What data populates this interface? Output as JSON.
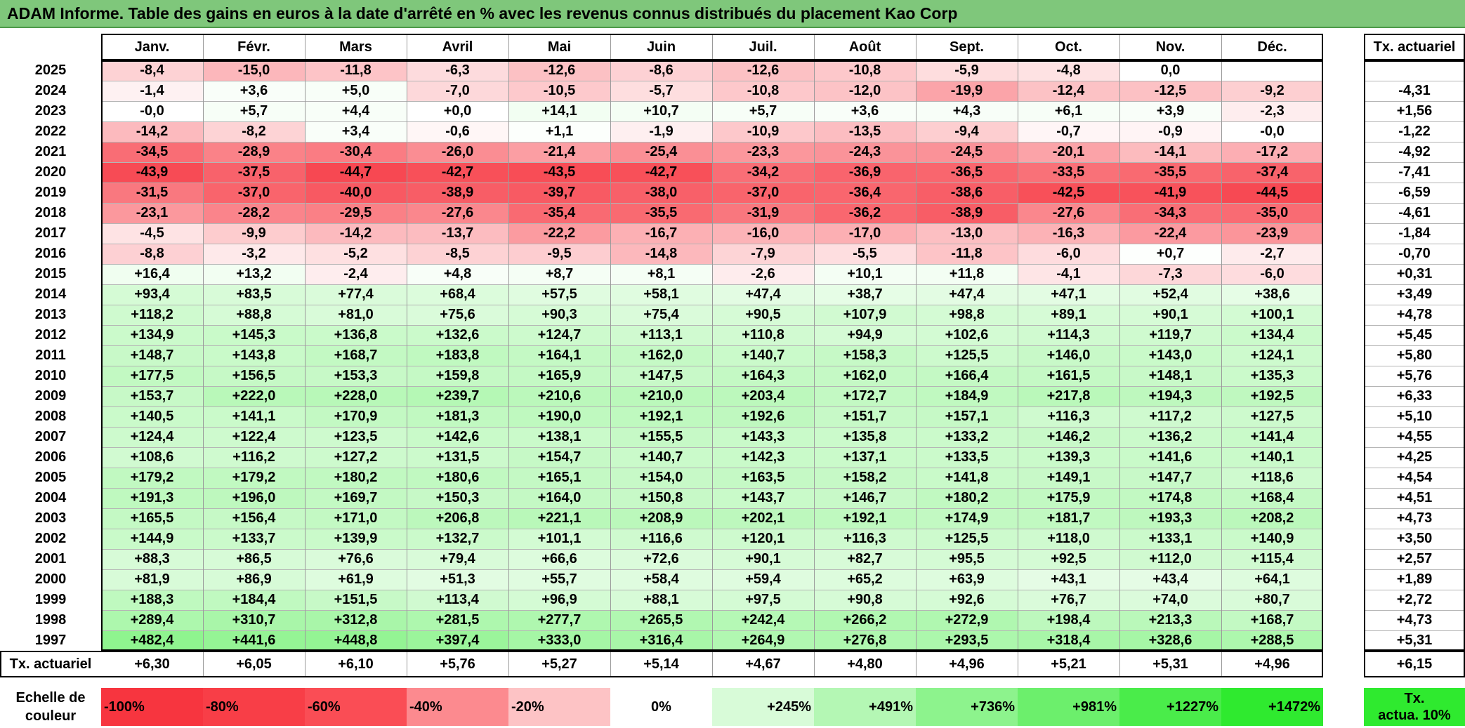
{
  "title": "ADAM Informe. Table des gains en euros à la date d'arrêté en % avec les revenus connus distribués du placement Kao Corp",
  "chart_data": {
    "type": "heatmap",
    "title": "ADAM Informe. Table des gains en euros à la date d'arrêté en % avec les revenus connus distribués du placement Kao Corp",
    "months": [
      "Janv.",
      "Févr.",
      "Mars",
      "Avril",
      "Mai",
      "Juin",
      "Juil.",
      "Août",
      "Sept.",
      "Oct.",
      "Nov.",
      "Déc."
    ],
    "annual_header": "Tx. actuariel",
    "rows": [
      {
        "year": "2025",
        "values": [
          "-8,4",
          "-15,0",
          "-11,8",
          "-6,3",
          "-12,6",
          "-8,6",
          "-12,6",
          "-10,8",
          "-5,9",
          "-4,8",
          "0,0",
          ""
        ],
        "annual": ""
      },
      {
        "year": "2024",
        "values": [
          "-1,4",
          "+3,6",
          "+5,0",
          "-7,0",
          "-10,5",
          "-5,7",
          "-10,8",
          "-12,0",
          "-19,9",
          "-12,4",
          "-12,5",
          "-9,2"
        ],
        "annual": "-4,31"
      },
      {
        "year": "2023",
        "values": [
          "-0,0",
          "+5,7",
          "+4,4",
          "+0,0",
          "+14,1",
          "+10,7",
          "+5,7",
          "+3,6",
          "+4,3",
          "+6,1",
          "+3,9",
          "-2,3"
        ],
        "annual": "+1,56"
      },
      {
        "year": "2022",
        "values": [
          "-14,2",
          "-8,2",
          "+3,4",
          "-0,6",
          "+1,1",
          "-1,9",
          "-10,9",
          "-13,5",
          "-9,4",
          "-0,7",
          "-0,9",
          "-0,0"
        ],
        "annual": "-1,22"
      },
      {
        "year": "2021",
        "values": [
          "-34,5",
          "-28,9",
          "-30,4",
          "-26,0",
          "-21,4",
          "-25,4",
          "-23,3",
          "-24,3",
          "-24,5",
          "-20,1",
          "-14,1",
          "-17,2"
        ],
        "annual": "-4,92"
      },
      {
        "year": "2020",
        "values": [
          "-43,9",
          "-37,5",
          "-44,7",
          "-42,7",
          "-43,5",
          "-42,7",
          "-34,2",
          "-36,9",
          "-36,5",
          "-33,5",
          "-35,5",
          "-37,4"
        ],
        "annual": "-7,41"
      },
      {
        "year": "2019",
        "values": [
          "-31,5",
          "-37,0",
          "-40,0",
          "-38,9",
          "-39,7",
          "-38,0",
          "-37,0",
          "-36,4",
          "-38,6",
          "-42,5",
          "-41,9",
          "-44,5"
        ],
        "annual": "-6,59"
      },
      {
        "year": "2018",
        "values": [
          "-23,1",
          "-28,2",
          "-29,5",
          "-27,6",
          "-35,4",
          "-35,5",
          "-31,9",
          "-36,2",
          "-38,9",
          "-27,6",
          "-34,3",
          "-35,0"
        ],
        "annual": "-4,61"
      },
      {
        "year": "2017",
        "values": [
          "-4,5",
          "-9,9",
          "-14,2",
          "-13,7",
          "-22,2",
          "-16,7",
          "-16,0",
          "-17,0",
          "-13,0",
          "-16,3",
          "-22,4",
          "-23,9"
        ],
        "annual": "-1,84"
      },
      {
        "year": "2016",
        "values": [
          "-8,8",
          "-3,2",
          "-5,2",
          "-8,5",
          "-9,5",
          "-14,8",
          "-7,9",
          "-5,5",
          "-11,8",
          "-6,0",
          "+0,7",
          "-2,7"
        ],
        "annual": "-0,70"
      },
      {
        "year": "2015",
        "values": [
          "+16,4",
          "+13,2",
          "-2,4",
          "+4,8",
          "+8,7",
          "+8,1",
          "-2,6",
          "+10,1",
          "+11,8",
          "-4,1",
          "-7,3",
          "-6,0"
        ],
        "annual": "+0,31"
      },
      {
        "year": "2014",
        "values": [
          "+93,4",
          "+83,5",
          "+77,4",
          "+68,4",
          "+57,5",
          "+58,1",
          "+47,4",
          "+38,7",
          "+47,4",
          "+47,1",
          "+52,4",
          "+38,6"
        ],
        "annual": "+3,49"
      },
      {
        "year": "2013",
        "values": [
          "+118,2",
          "+88,8",
          "+81,0",
          "+75,6",
          "+90,3",
          "+75,4",
          "+90,5",
          "+107,9",
          "+98,8",
          "+89,1",
          "+90,1",
          "+100,1"
        ],
        "annual": "+4,78"
      },
      {
        "year": "2012",
        "values": [
          "+134,9",
          "+145,3",
          "+136,8",
          "+132,6",
          "+124,7",
          "+113,1",
          "+110,8",
          "+94,9",
          "+102,6",
          "+114,3",
          "+119,7",
          "+134,4"
        ],
        "annual": "+5,45"
      },
      {
        "year": "2011",
        "values": [
          "+148,7",
          "+143,8",
          "+168,7",
          "+183,8",
          "+164,1",
          "+162,0",
          "+140,7",
          "+158,3",
          "+125,5",
          "+146,0",
          "+143,0",
          "+124,1"
        ],
        "annual": "+5,80"
      },
      {
        "year": "2010",
        "values": [
          "+177,5",
          "+156,5",
          "+153,3",
          "+159,8",
          "+165,9",
          "+147,5",
          "+164,3",
          "+162,0",
          "+166,4",
          "+161,5",
          "+148,1",
          "+135,3"
        ],
        "annual": "+5,76"
      },
      {
        "year": "2009",
        "values": [
          "+153,7",
          "+222,0",
          "+228,0",
          "+239,7",
          "+210,6",
          "+210,0",
          "+203,4",
          "+172,7",
          "+184,9",
          "+217,8",
          "+194,3",
          "+192,5"
        ],
        "annual": "+6,33"
      },
      {
        "year": "2008",
        "values": [
          "+140,5",
          "+141,1",
          "+170,9",
          "+181,3",
          "+190,0",
          "+192,1",
          "+192,6",
          "+151,7",
          "+157,1",
          "+116,3",
          "+117,2",
          "+127,5"
        ],
        "annual": "+5,10"
      },
      {
        "year": "2007",
        "values": [
          "+124,4",
          "+122,4",
          "+123,5",
          "+142,6",
          "+138,1",
          "+155,5",
          "+143,3",
          "+135,8",
          "+133,2",
          "+146,2",
          "+136,2",
          "+141,4"
        ],
        "annual": "+4,55"
      },
      {
        "year": "2006",
        "values": [
          "+108,6",
          "+116,2",
          "+127,2",
          "+131,5",
          "+154,7",
          "+140,7",
          "+142,3",
          "+137,1",
          "+133,5",
          "+139,3",
          "+141,6",
          "+140,1"
        ],
        "annual": "+4,25"
      },
      {
        "year": "2005",
        "values": [
          "+179,2",
          "+179,2",
          "+180,2",
          "+180,6",
          "+165,1",
          "+154,0",
          "+163,5",
          "+158,2",
          "+141,8",
          "+149,1",
          "+147,7",
          "+118,6"
        ],
        "annual": "+4,54"
      },
      {
        "year": "2004",
        "values": [
          "+191,3",
          "+196,0",
          "+169,7",
          "+150,3",
          "+164,0",
          "+150,8",
          "+143,7",
          "+146,7",
          "+180,2",
          "+175,9",
          "+174,8",
          "+168,4"
        ],
        "annual": "+4,51"
      },
      {
        "year": "2003",
        "values": [
          "+165,5",
          "+156,4",
          "+171,0",
          "+206,8",
          "+221,1",
          "+208,9",
          "+202,1",
          "+192,1",
          "+174,9",
          "+181,7",
          "+193,3",
          "+208,2"
        ],
        "annual": "+4,73"
      },
      {
        "year": "2002",
        "values": [
          "+144,9",
          "+133,7",
          "+139,9",
          "+132,7",
          "+101,1",
          "+116,6",
          "+120,1",
          "+116,3",
          "+125,5",
          "+118,0",
          "+133,1",
          "+140,9"
        ],
        "annual": "+3,50"
      },
      {
        "year": "2001",
        "values": [
          "+88,3",
          "+86,5",
          "+76,6",
          "+79,4",
          "+66,6",
          "+72,6",
          "+90,1",
          "+82,7",
          "+95,5",
          "+92,5",
          "+112,0",
          "+115,4"
        ],
        "annual": "+2,57"
      },
      {
        "year": "2000",
        "values": [
          "+81,9",
          "+86,9",
          "+61,9",
          "+51,3",
          "+55,7",
          "+58,4",
          "+59,4",
          "+65,2",
          "+63,9",
          "+43,1",
          "+43,4",
          "+64,1"
        ],
        "annual": "+1,89"
      },
      {
        "year": "1999",
        "values": [
          "+188,3",
          "+184,4",
          "+151,5",
          "+113,4",
          "+96,9",
          "+88,1",
          "+97,5",
          "+90,8",
          "+92,6",
          "+76,7",
          "+74,0",
          "+80,7"
        ],
        "annual": "+2,72"
      },
      {
        "year": "1998",
        "values": [
          "+289,4",
          "+310,7",
          "+312,8",
          "+281,5",
          "+277,7",
          "+265,5",
          "+242,4",
          "+266,2",
          "+272,9",
          "+198,4",
          "+213,3",
          "+168,7"
        ],
        "annual": "+4,73"
      },
      {
        "year": "1997",
        "values": [
          "+482,4",
          "+441,6",
          "+448,8",
          "+397,4",
          "+333,0",
          "+316,4",
          "+264,9",
          "+276,8",
          "+293,5",
          "+318,4",
          "+328,6",
          "+288,5"
        ],
        "annual": "+5,31"
      }
    ],
    "footer": {
      "label": "Tx. actuariel",
      "values": [
        "+6,30",
        "+6,05",
        "+6,10",
        "+5,76",
        "+5,27",
        "+5,14",
        "+4,67",
        "+4,80",
        "+4,96",
        "+5,21",
        "+5,31",
        "+4,96"
      ],
      "annual": "+6,15"
    },
    "scale": {
      "label_line1": "Echelle de",
      "label_line2": "couleur",
      "items": [
        "-100%",
        "-80%",
        "-60%",
        "-40%",
        "-20%",
        "0%",
        "+245%",
        "+491%",
        "+736%",
        "+981%",
        "+1227%",
        "+1472%"
      ],
      "annual_line1": "Tx.",
      "annual_line2": "actua. 10%"
    },
    "colors": {
      "negative_max": "#f7303a",
      "positive_max": "#2fea2f",
      "neutral": "#ffffff",
      "title_bar": "#7fc77b"
    }
  }
}
